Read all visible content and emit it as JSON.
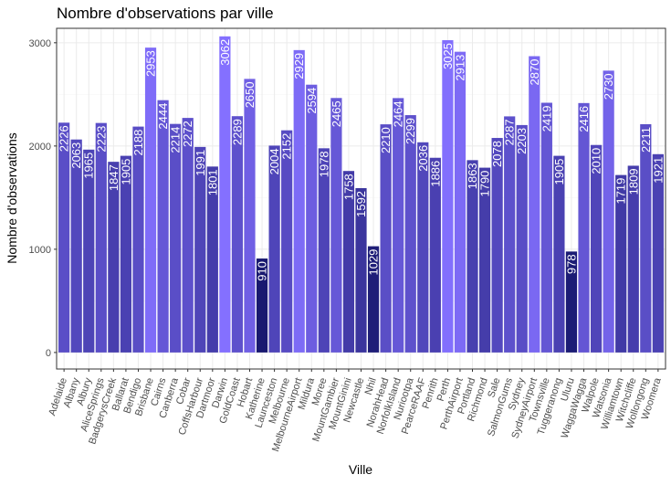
{
  "chart_data": {
    "type": "bar",
    "title": "Nombre d'observations par ville",
    "xlabel": "Ville",
    "ylabel": "Nombre d'observations",
    "ylim": [
      -160,
      3140
    ],
    "yticks": [
      0,
      1000,
      2000,
      3000
    ],
    "grid": true,
    "legend": "none",
    "categories": [
      "Adelaide",
      "Albany",
      "Albury",
      "AliceSprings",
      "BadgerysCreek",
      "Ballarat",
      "Bendigo",
      "Brisbane",
      "Cairns",
      "Canberra",
      "Cobar",
      "CoffsHarbour",
      "Dartmoor",
      "Darwin",
      "GoldCoast",
      "Hobart",
      "Katherine",
      "Launceston",
      "Melbourne",
      "MelbourneAirport",
      "Mildura",
      "Moree",
      "MountGambier",
      "MountGinini",
      "Newcastle",
      "Nhil",
      "NorahHead",
      "NorfolkIsland",
      "Nuriootpa",
      "PearceRAAF",
      "Penrith",
      "Perth",
      "PerthAirport",
      "Portland",
      "Richmond",
      "Sale",
      "SalmonGums",
      "Sydney",
      "SydneyAirport",
      "Townsville",
      "Tuggeranong",
      "Uluru",
      "WaggaWagga",
      "Walpole",
      "Watsonia",
      "Williamtown",
      "Witchcliffe",
      "Wollongong",
      "Woomera"
    ],
    "values": [
      2226,
      2063,
      1965,
      2223,
      1847,
      1905,
      2188,
      2953,
      2444,
      2214,
      2272,
      1991,
      1801,
      3062,
      2289,
      2650,
      910,
      2004,
      2152,
      2929,
      2594,
      1978,
      2465,
      1758,
      1592,
      1029,
      2210,
      2464,
      2299,
      2036,
      1886,
      3025,
      2913,
      1863,
      1790,
      2078,
      2287,
      2203,
      2870,
      2419,
      1905,
      978,
      2416,
      2010,
      2730,
      1719,
      1809,
      2211,
      1921
    ],
    "color_low": "#191970",
    "color_high": "#8470ff"
  }
}
